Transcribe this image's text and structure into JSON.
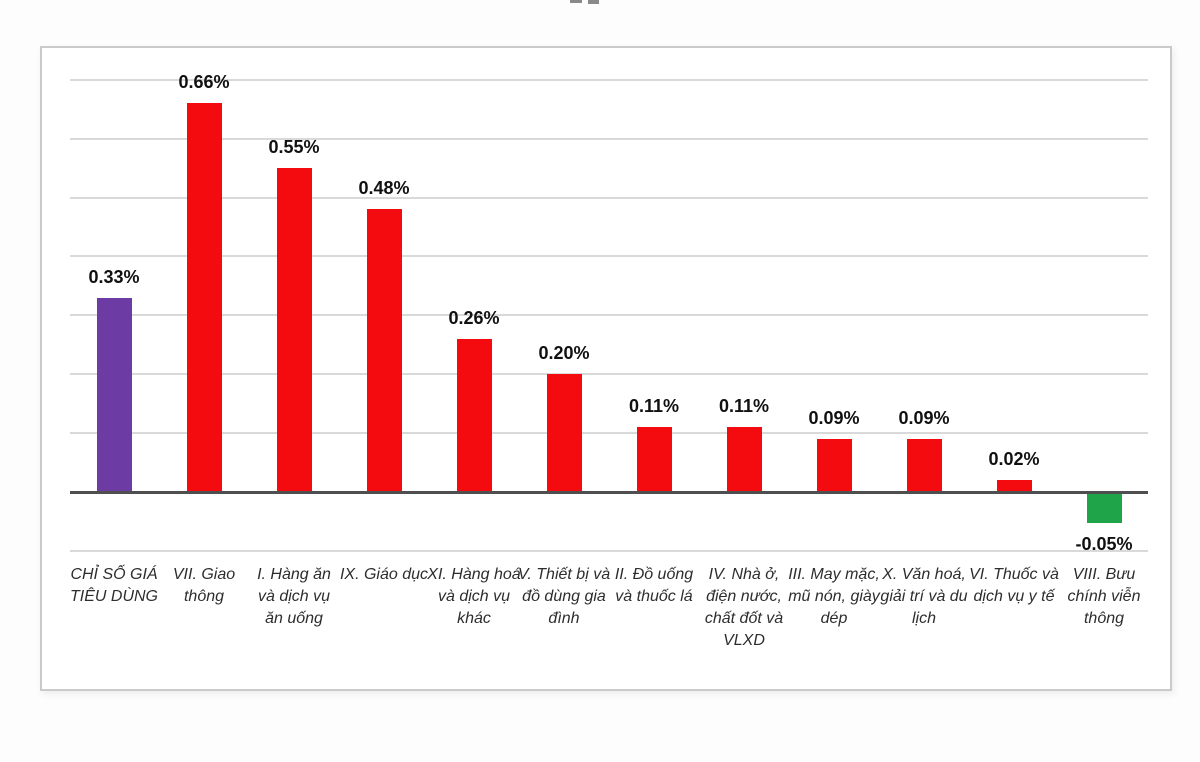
{
  "chart_data": {
    "type": "bar",
    "title": "",
    "xlabel": "",
    "ylabel": "",
    "categories": [
      "CHỈ SỐ GIÁ TIÊU DÙNG",
      "VII. Giao thông",
      "I. Hàng ăn và dịch vụ ăn uống",
      "IX. Giáo dục",
      "XI. Hàng hoá và dịch vụ khác",
      "V. Thiết bị và đồ dùng gia đình",
      "II. Đồ uống và thuốc lá",
      "IV. Nhà ở, điện nước, chất đốt và VLXD",
      "III. May mặc, mũ nón, giày dép",
      "X. Văn hoá, giải trí và du lịch",
      "VI. Thuốc và dịch vụ y tế",
      "VIII. Bưu chính viễn thông"
    ],
    "values": [
      0.33,
      0.66,
      0.55,
      0.48,
      0.26,
      0.2,
      0.11,
      0.11,
      0.09,
      0.09,
      0.02,
      -0.05
    ],
    "value_labels": [
      "0.33%",
      "0.66%",
      "0.55%",
      "0.48%",
      "0.26%",
      "0.20%",
      "0.11%",
      "0.11%",
      "0.09%",
      "0.09%",
      "0.02%",
      "-0.05%"
    ],
    "bar_colors": [
      "#6c3ba3",
      "#f40b0f",
      "#f40b0f",
      "#f40b0f",
      "#f40b0f",
      "#f40b0f",
      "#f40b0f",
      "#f40b0f",
      "#f40b0f",
      "#f40b0f",
      "#f40b0f",
      "#1fa44a"
    ],
    "ylim": [
      -0.1,
      0.7
    ],
    "gridline_step": 0.1,
    "grid": true,
    "legend": false,
    "y_axis_tick_labels_visible": false
  },
  "styles": {
    "page_background": "#fdfdfd",
    "panel_background": "#ffffff",
    "panel_border_color": "#cacaca",
    "gridline_color": "#d9d9d9",
    "axis_color": "#4f4f4f",
    "cpi_bar_color": "#6c3ba3",
    "positive_bar_color": "#f40b0f",
    "negative_bar_color": "#1fa44a",
    "value_label_color": "#111111",
    "category_label_color": "#2d2d2d"
  }
}
